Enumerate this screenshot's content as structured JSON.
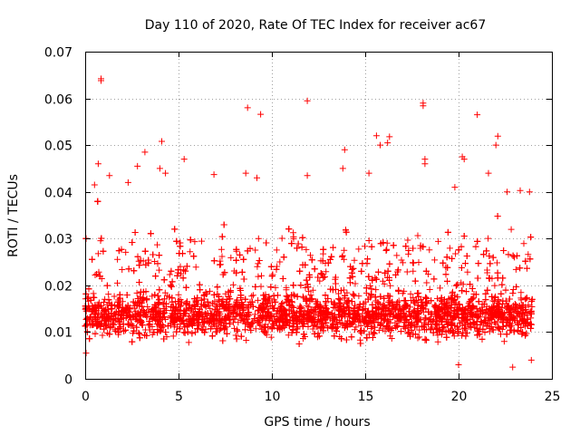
{
  "chart_data": {
    "type": "scatter",
    "title": "Day 110 of 2020, Rate Of TEC Index for receiver ac67",
    "xlabel": "GPS time / hours",
    "ylabel": "ROTI / TECUs",
    "xlim": [
      0,
      25
    ],
    "ylim": [
      0,
      0.07
    ],
    "xticks": [
      "0",
      "5",
      "10",
      "15",
      "20",
      "25"
    ],
    "yticks": [
      "0",
      "0.01",
      "0.02",
      "0.03",
      "0.04",
      "0.05",
      "0.06",
      "0.07"
    ],
    "grid": true,
    "marker": "+",
    "marker_color": "#ff0000",
    "series": [
      {
        "points_description": "dense cloud of ROTI samples from 0 to 24 hours, mostly between 0.005 and 0.03 TECUs",
        "points": [
          [
            0.85,
            0.0642
          ],
          [
            0.85,
            0.0638
          ],
          [
            8.7,
            0.058
          ],
          [
            9.4,
            0.0566
          ],
          [
            11.9,
            0.0595
          ],
          [
            18.1,
            0.059
          ],
          [
            18.1,
            0.0584
          ],
          [
            21.0,
            0.0565
          ],
          [
            15.6,
            0.052
          ],
          [
            16.3,
            0.0518
          ],
          [
            22.1,
            0.0519
          ],
          [
            4.1,
            0.0508
          ],
          [
            3.2,
            0.0485
          ],
          [
            13.9,
            0.049
          ],
          [
            15.8,
            0.05
          ],
          [
            16.2,
            0.0505
          ],
          [
            20.2,
            0.0475
          ],
          [
            20.3,
            0.047
          ],
          [
            18.2,
            0.047
          ],
          [
            18.2,
            0.046
          ],
          [
            22.0,
            0.05
          ],
          [
            2.8,
            0.0455
          ],
          [
            0.7,
            0.046
          ],
          [
            5.3,
            0.047
          ],
          [
            13.8,
            0.045
          ],
          [
            15.2,
            0.044
          ],
          [
            4.3,
            0.044
          ],
          [
            4.0,
            0.045
          ],
          [
            6.9,
            0.0437
          ],
          [
            8.6,
            0.044
          ],
          [
            11.9,
            0.0435
          ],
          [
            9.2,
            0.043
          ],
          [
            21.6,
            0.044
          ],
          [
            23.8,
            0.04
          ],
          [
            23.3,
            0.0403
          ],
          [
            2.3,
            0.042
          ],
          [
            1.3,
            0.0435
          ],
          [
            0.5,
            0.0415
          ],
          [
            19.8,
            0.041
          ],
          [
            22.6,
            0.04
          ],
          [
            22.9,
            0.0025
          ],
          [
            20.0,
            0.003
          ],
          [
            23.9,
            0.004
          ],
          [
            0.05,
            0.0055
          ]
        ]
      }
    ]
  }
}
